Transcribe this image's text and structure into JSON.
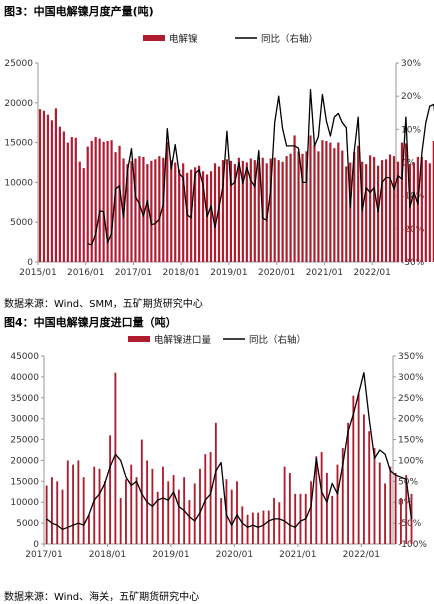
{
  "figures": [
    {
      "title": "图3：中国电解镍月度产量(吨)",
      "source": "数据来源：Wind、SMM，五矿期货研究中心"
    },
    {
      "title": "图4：中国电解镍月度进口量（吨）",
      "source": "数据来源：Wind、海关，五矿期货研究中心"
    }
  ],
  "colors": {
    "bar": "#b01c2e",
    "line": "#000000",
    "axis": "#999999"
  },
  "chart_data": [
    {
      "type": "bar",
      "start": "2015-01",
      "legend_position": "top-center",
      "grid": false,
      "xticks": [
        "2015/01",
        "2016/01",
        "2017/01",
        "2018/01",
        "2019/01",
        "2020/01",
        "2021/01",
        "2022/01"
      ],
      "ylim": [
        0,
        25000
      ],
      "yticks": [
        "0",
        "5000",
        "10000",
        "15000",
        "20000",
        "25000"
      ],
      "y2lim": [
        -30,
        30
      ],
      "y2ticks": [
        "-30%",
        "-20%",
        "-10%",
        "0%",
        "10%",
        "20%",
        "30%"
      ],
      "series": [
        {
          "name": "电解镍",
          "type": "bar",
          "axis": "left",
          "values": [
            19200,
            19000,
            18500,
            17800,
            19300,
            17000,
            16400,
            15000,
            15700,
            15600,
            12600,
            11800,
            14500,
            15200,
            15700,
            15500,
            15100,
            15200,
            15300,
            13800,
            14600,
            13000,
            12300,
            12700,
            13000,
            13300,
            13200,
            12300,
            12700,
            12900,
            13300,
            13100,
            15100,
            12800,
            12500,
            11600,
            12400,
            11200,
            11600,
            11900,
            12100,
            11400,
            11000,
            11400,
            12400,
            12000,
            12800,
            12900,
            12700,
            12300,
            13100,
            12700,
            12500,
            13000,
            12800,
            12600,
            13100,
            12400,
            13000,
            13100,
            12800,
            12600,
            13300,
            13600,
            15900,
            13900,
            13600,
            13900,
            15900,
            14700,
            13900,
            15300,
            15200,
            15000,
            14300,
            15000,
            14000,
            12000,
            12500,
            13800,
            14600,
            12600,
            12300,
            13400,
            13200,
            12100,
            12800,
            12900,
            13500,
            13300,
            12600,
            15000,
            14900,
            12300,
            12500,
            13200,
            13200,
            12800,
            12400,
            15200,
            14800
          ]
        },
        {
          "name": "同比（右轴）",
          "type": "line",
          "axis": "right",
          "values": [
            null,
            null,
            null,
            null,
            null,
            null,
            null,
            null,
            null,
            null,
            null,
            null,
            -24.5,
            -24.8,
            -21.5,
            -14.6,
            -14.8,
            -24.2,
            -21.3,
            -8.0,
            -7.0,
            -16.7,
            -2.4,
            4.2,
            -10.3,
            -12.5,
            -16.2,
            -11.5,
            -18.8,
            -18.4,
            -17.1,
            -12.6,
            10.2,
            -2.0,
            5.4,
            -3.3,
            -4.6,
            -15.8,
            -16.7,
            -3.3,
            -2.2,
            -6.8,
            -16.3,
            -13.1,
            -19.6,
            -13.5,
            -7.1,
            9.4,
            -6.9,
            -6.0,
            0,
            -6.3,
            -1.5,
            -5.4,
            -7.3,
            3.6,
            -16.8,
            -17.4,
            -8.3,
            12.0,
            20.0,
            10.2,
            5.0,
            5.0,
            5.0,
            4.3,
            -6.0,
            -6.0,
            22.0,
            5.0,
            7.8,
            20.5,
            12.5,
            8.0,
            13.7,
            14.8,
            12.0,
            10.5,
            -13.6,
            3.3,
            13.7,
            -14.6,
            -7.6,
            -9.0,
            -7.6,
            -14.9,
            -6.0,
            -4.5,
            -4.6,
            -8.0,
            -4.0,
            -5.0,
            13.7,
            -13.5,
            -9.0,
            -12.5,
            3.0,
            12.0,
            17.0,
            17.5,
            7.5,
            -4.0,
            -7.0,
            -2.0,
            2.0,
            15.0,
            5.0
          ]
        }
      ]
    },
    {
      "type": "bar",
      "start": "2017-01",
      "legend_position": "top-center",
      "grid": false,
      "xticks": [
        "2017/01",
        "2018/01",
        "2019/01",
        "2020/01",
        "2021/01",
        "2022/01"
      ],
      "ylim": [
        0,
        45000
      ],
      "yticks": [
        "0",
        "5000",
        "10000",
        "15000",
        "20000",
        "25000",
        "30000",
        "35000",
        "40000",
        "45000"
      ],
      "y2lim": [
        -100,
        350
      ],
      "y2ticks": [
        "-100%",
        "-50%",
        "0%",
        "50%",
        "100%",
        "150%",
        "200%",
        "250%",
        "300%",
        "350%"
      ],
      "series": [
        {
          "name": "电解镍进口量",
          "type": "bar",
          "axis": "left",
          "values": [
            14000,
            16000,
            15000,
            13000,
            20000,
            19000,
            20000,
            16000,
            7000,
            18500,
            18000,
            15000,
            26000,
            41000,
            11000,
            15500,
            19000,
            16000,
            25000,
            20000,
            18000,
            12500,
            18500,
            15000,
            16500,
            13000,
            16000,
            10500,
            14500,
            18000,
            21500,
            22000,
            29000,
            11000,
            15500,
            13000,
            15000,
            9000,
            7000,
            7500,
            7500,
            8000,
            8000,
            11000,
            10000,
            18500,
            17000,
            12000,
            12000,
            12000,
            15000,
            21000,
            22000,
            17000,
            11500,
            19000,
            23000,
            29000,
            35500,
            36000,
            31000,
            27000,
            23000,
            19500,
            14500,
            18500,
            17000,
            11000,
            16500,
            12000
          ]
        },
        {
          "name": "同比（右轴）",
          "type": "line",
          "axis": "right",
          "values": [
            -40,
            -50,
            -55,
            -65,
            -60,
            -55,
            -50,
            -55,
            -30,
            5,
            20,
            45,
            85,
            115,
            100,
            60,
            40,
            50,
            20,
            0,
            -10,
            5,
            10,
            5,
            25,
            -10,
            -20,
            -35,
            -45,
            -25,
            5,
            20,
            75,
            95,
            -30,
            -55,
            -30,
            -50,
            -60,
            -55,
            -60,
            -55,
            -45,
            -40,
            -40,
            -45,
            -55,
            -60,
            -45,
            -40,
            -10,
            105,
            25,
            0,
            45,
            20,
            90,
            170,
            210,
            260,
            310,
            200,
            105,
            125,
            115,
            75,
            65,
            60,
            55,
            -40
          ]
        }
      ]
    }
  ]
}
